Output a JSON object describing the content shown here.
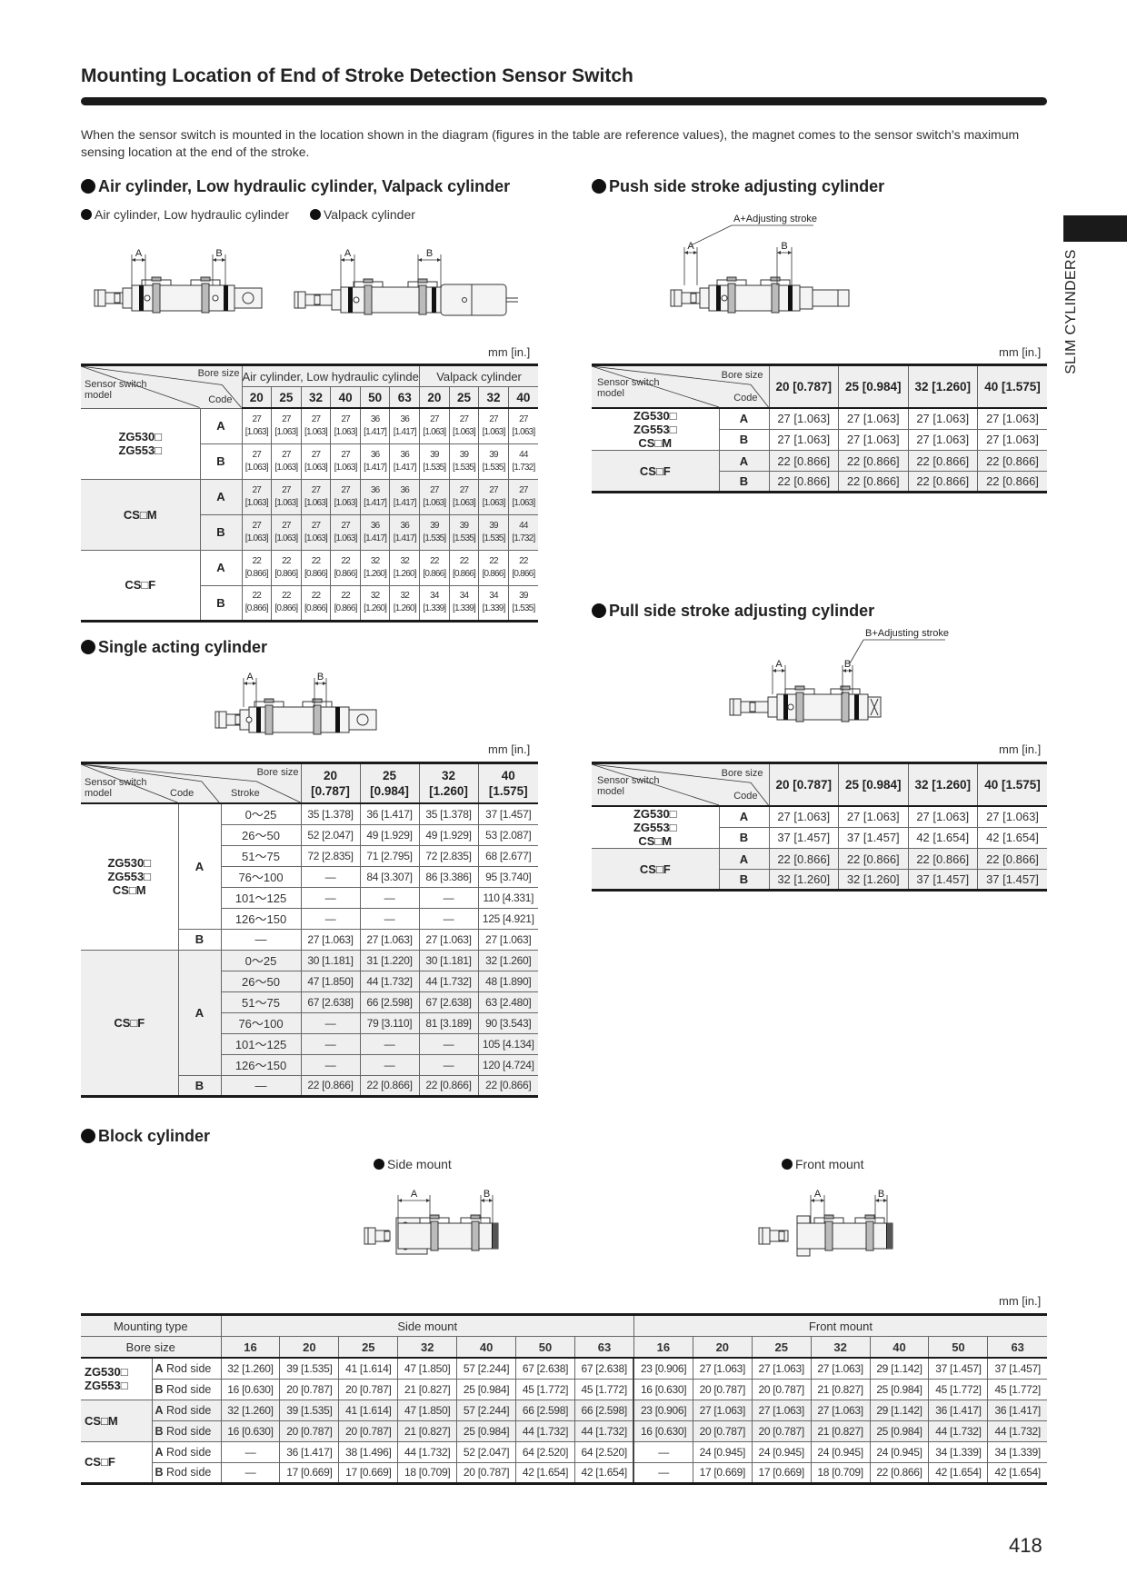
{
  "page": {
    "title": "Mounting Location of End of Stroke Detection Sensor Switch",
    "intro": "When the sensor switch is mounted in the location shown in the diagram (figures in the table are reference values), the magnet comes to the sensor switch's maximum sensing location at the end of the stroke.",
    "side_tab": "SLIM CYLINDERS",
    "page_number": "418",
    "unit_label": "mm [in.]"
  },
  "sections": {
    "air": {
      "heading": "Air cylinder, Low hydraulic cylinder, Valpack cylinder",
      "sub_air": "Air cylinder, Low hydraulic cylinder",
      "sub_valpack": "Valpack cylinder"
    },
    "push": {
      "heading": "Push side stroke adjusting cylinder",
      "note": "A+Adjusting stroke"
    },
    "single": {
      "heading": "Single acting cylinder"
    },
    "pull": {
      "heading": "Pull side stroke adjusting cylinder",
      "note": "B+Adjusting stroke"
    },
    "block": {
      "heading": "Block cylinder",
      "sub_side": "Side mount",
      "sub_front": "Front mount"
    }
  },
  "diagram_labels": {
    "a": "A",
    "b": "B"
  },
  "corner_labels": {
    "bore_size": "Bore size",
    "code": "Code",
    "sensor_switch_model": "Sensor switch model",
    "stroke": "Stroke"
  },
  "tables": {
    "air": {
      "groups": [
        {
          "label": "Air cylinder, Low hydraulic cylinder",
          "span": 6
        },
        {
          "label": "Valpack cylinder",
          "span": 4
        }
      ],
      "bores": [
        "20",
        "25",
        "32",
        "40",
        "50",
        "63",
        "20",
        "25",
        "32",
        "40"
      ],
      "models": [
        {
          "model": [
            "ZG530□",
            "ZG553□"
          ],
          "shaded": false,
          "rows": [
            {
              "code": "A",
              "values": [
                "27 [1.063]",
                "27 [1.063]",
                "27 [1.063]",
                "27 [1.063]",
                "36 [1.417]",
                "36 [1.417]",
                "27 [1.063]",
                "27 [1.063]",
                "27 [1.063]",
                "27 [1.063]"
              ]
            },
            {
              "code": "B",
              "values": [
                "27 [1.063]",
                "27 [1.063]",
                "27 [1.063]",
                "27 [1.063]",
                "36 [1.417]",
                "36 [1.417]",
                "39 [1.535]",
                "39 [1.535]",
                "39 [1.535]",
                "44 [1.732]"
              ]
            }
          ]
        },
        {
          "model": [
            "CS□M"
          ],
          "shaded": true,
          "rows": [
            {
              "code": "A",
              "values": [
                "27 [1.063]",
                "27 [1.063]",
                "27 [1.063]",
                "27 [1.063]",
                "36 [1.417]",
                "36 [1.417]",
                "27 [1.063]",
                "27 [1.063]",
                "27 [1.063]",
                "27 [1.063]"
              ]
            },
            {
              "code": "B",
              "values": [
                "27 [1.063]",
                "27 [1.063]",
                "27 [1.063]",
                "27 [1.063]",
                "36 [1.417]",
                "36 [1.417]",
                "39 [1.535]",
                "39 [1.535]",
                "39 [1.535]",
                "44 [1.732]"
              ]
            }
          ]
        },
        {
          "model": [
            "CS□F"
          ],
          "shaded": false,
          "rows": [
            {
              "code": "A",
              "values": [
                "22 [0.866]",
                "22 [0.866]",
                "22 [0.866]",
                "22 [0.866]",
                "32 [1.260]",
                "32 [1.260]",
                "22 [0.866]",
                "22 [0.866]",
                "22 [0.866]",
                "22 [0.866]"
              ]
            },
            {
              "code": "B",
              "values": [
                "22 [0.866]",
                "22 [0.866]",
                "22 [0.866]",
                "22 [0.866]",
                "32 [1.260]",
                "32 [1.260]",
                "34 [1.339]",
                "34 [1.339]",
                "34 [1.339]",
                "39 [1.535]"
              ]
            }
          ]
        }
      ]
    },
    "push": {
      "bores": [
        "20 [0.787]",
        "25 [0.984]",
        "32 [1.260]",
        "40 [1.575]"
      ],
      "models": [
        {
          "model": [
            "ZG530□",
            "ZG553□",
            "CS□M"
          ],
          "shaded": false,
          "rows": [
            {
              "code": "A",
              "values": [
                "27 [1.063]",
                "27 [1.063]",
                "27 [1.063]",
                "27 [1.063]"
              ]
            },
            {
              "code": "B",
              "values": [
                "27 [1.063]",
                "27 [1.063]",
                "27 [1.063]",
                "27 [1.063]"
              ]
            }
          ]
        },
        {
          "model": [
            "CS□F"
          ],
          "shaded": true,
          "rows": [
            {
              "code": "A",
              "values": [
                "22 [0.866]",
                "22 [0.866]",
                "22 [0.866]",
                "22 [0.866]"
              ]
            },
            {
              "code": "B",
              "values": [
                "22 [0.866]",
                "22 [0.866]",
                "22 [0.866]",
                "22 [0.866]"
              ]
            }
          ]
        }
      ]
    },
    "pull": {
      "bores": [
        "20 [0.787]",
        "25 [0.984]",
        "32 [1.260]",
        "40 [1.575]"
      ],
      "models": [
        {
          "model": [
            "ZG530□",
            "ZG553□",
            "CS□M"
          ],
          "shaded": false,
          "rows": [
            {
              "code": "A",
              "values": [
                "27 [1.063]",
                "27 [1.063]",
                "27 [1.063]",
                "27 [1.063]"
              ]
            },
            {
              "code": "B",
              "values": [
                "37 [1.457]",
                "37 [1.457]",
                "42 [1.654]",
                "42 [1.654]"
              ]
            }
          ]
        },
        {
          "model": [
            "CS□F"
          ],
          "shaded": true,
          "rows": [
            {
              "code": "A",
              "values": [
                "22 [0.866]",
                "22 [0.866]",
                "22 [0.866]",
                "22 [0.866]"
              ]
            },
            {
              "code": "B",
              "values": [
                "32 [1.260]",
                "32 [1.260]",
                "37 [1.457]",
                "37 [1.457]"
              ]
            }
          ]
        }
      ]
    },
    "single": {
      "bores": [
        "20 [0.787]",
        "25 [0.984]",
        "32 [1.260]",
        "40 [1.575]"
      ],
      "models": [
        {
          "model": [
            "ZG530□",
            "ZG553□",
            "CS□M"
          ],
          "shaded": false,
          "codes": [
            {
              "code": "A",
              "rows": [
                {
                  "stroke": "0～25",
                  "values": [
                    "35 [1.378]",
                    "36 [1.417]",
                    "35 [1.378]",
                    "37 [1.457]"
                  ]
                },
                {
                  "stroke": "26～50",
                  "values": [
                    "52 [2.047]",
                    "49 [1.929]",
                    "49 [1.929]",
                    "53 [2.087]"
                  ]
                },
                {
                  "stroke": "51～75",
                  "values": [
                    "72 [2.835]",
                    "71 [2.795]",
                    "72 [2.835]",
                    "68 [2.677]"
                  ]
                },
                {
                  "stroke": "76～100",
                  "values": [
                    "—",
                    "84 [3.307]",
                    "86 [3.386]",
                    "95 [3.740]"
                  ]
                },
                {
                  "stroke": "101～125",
                  "values": [
                    "—",
                    "—",
                    "—",
                    "110 [4.331]"
                  ]
                },
                {
                  "stroke": "126～150",
                  "values": [
                    "—",
                    "—",
                    "—",
                    "125 [4.921]"
                  ]
                }
              ]
            },
            {
              "code": "B",
              "rows": [
                {
                  "stroke": "—",
                  "values": [
                    "27 [1.063]",
                    "27 [1.063]",
                    "27 [1.063]",
                    "27 [1.063]"
                  ]
                }
              ]
            }
          ]
        },
        {
          "model": [
            "CS□F"
          ],
          "shaded": true,
          "codes": [
            {
              "code": "A",
              "rows": [
                {
                  "stroke": "0～25",
                  "values": [
                    "30 [1.181]",
                    "31 [1.220]",
                    "30 [1.181]",
                    "32 [1.260]"
                  ]
                },
                {
                  "stroke": "26～50",
                  "values": [
                    "47 [1.850]",
                    "44 [1.732]",
                    "44 [1.732]",
                    "48 [1.890]"
                  ]
                },
                {
                  "stroke": "51～75",
                  "values": [
                    "67 [2.638]",
                    "66 [2.598]",
                    "67 [2.638]",
                    "63 [2.480]"
                  ]
                },
                {
                  "stroke": "76～100",
                  "values": [
                    "—",
                    "79 [3.110]",
                    "81 [3.189]",
                    "90 [3.543]"
                  ]
                },
                {
                  "stroke": "101～125",
                  "values": [
                    "—",
                    "—",
                    "—",
                    "105 [4.134]"
                  ]
                },
                {
                  "stroke": "126～150",
                  "values": [
                    "—",
                    "—",
                    "—",
                    "120 [4.724]"
                  ]
                }
              ]
            },
            {
              "code": "B",
              "rows": [
                {
                  "stroke": "—",
                  "values": [
                    "22 [0.866]",
                    "22 [0.866]",
                    "22 [0.866]",
                    "22 [0.866]"
                  ]
                }
              ]
            }
          ]
        }
      ]
    },
    "block": {
      "mounting_type_label": "Mounting type",
      "bore_size_label": "Bore size",
      "groups": [
        "Side mount",
        "Front mount"
      ],
      "bores": [
        "16",
        "20",
        "25",
        "32",
        "40",
        "50",
        "63",
        "16",
        "20",
        "25",
        "32",
        "40",
        "50",
        "63"
      ],
      "side_label": "Rod side",
      "models": [
        {
          "model": [
            "ZG530□",
            "ZG553□"
          ],
          "shaded": false,
          "rows": [
            {
              "code": "A",
              "values": [
                "32 [1.260]",
                "39 [1.535]",
                "41 [1.614]",
                "47 [1.850]",
                "57 [2.244]",
                "67 [2.638]",
                "67 [2.638]",
                "23 [0.906]",
                "27 [1.063]",
                "27 [1.063]",
                "27 [1.063]",
                "29 [1.142]",
                "37 [1.457]",
                "37 [1.457]"
              ]
            },
            {
              "code": "B",
              "values": [
                "16 [0.630]",
                "20 [0.787]",
                "20 [0.787]",
                "21 [0.827]",
                "25 [0.984]",
                "45 [1.772]",
                "45 [1.772]",
                "16 [0.630]",
                "20 [0.787]",
                "20 [0.787]",
                "21 [0.827]",
                "25 [0.984]",
                "45 [1.772]",
                "45 [1.772]"
              ]
            }
          ]
        },
        {
          "model": [
            "CS□M"
          ],
          "shaded": true,
          "rows": [
            {
              "code": "A",
              "values": [
                "32 [1.260]",
                "39 [1.535]",
                "41 [1.614]",
                "47 [1.850]",
                "57 [2.244]",
                "66 [2.598]",
                "66 [2.598]",
                "23 [0.906]",
                "27 [1.063]",
                "27 [1.063]",
                "27 [1.063]",
                "29 [1.142]",
                "36 [1.417]",
                "36 [1.417]"
              ]
            },
            {
              "code": "B",
              "values": [
                "16 [0.630]",
                "20 [0.787]",
                "20 [0.787]",
                "21 [0.827]",
                "25 [0.984]",
                "44 [1.732]",
                "44 [1.732]",
                "16 [0.630]",
                "20 [0.787]",
                "20 [0.787]",
                "21 [0.827]",
                "25 [0.984]",
                "44 [1.732]",
                "44 [1.732]"
              ]
            }
          ]
        },
        {
          "model": [
            "CS□F"
          ],
          "shaded": false,
          "rows": [
            {
              "code": "A",
              "values": [
                "—",
                "36 [1.417]",
                "38 [1.496]",
                "44 [1.732]",
                "52 [2.047]",
                "64 [2.520]",
                "64 [2.520]",
                "—",
                "24 [0.945]",
                "24 [0.945]",
                "24 [0.945]",
                "24 [0.945]",
                "34 [1.339]",
                "34 [1.339]"
              ]
            },
            {
              "code": "B",
              "values": [
                "—",
                "17 [0.669]",
                "17 [0.669]",
                "18 [0.709]",
                "20 [0.787]",
                "42 [1.654]",
                "42 [1.654]",
                "—",
                "17 [0.669]",
                "17 [0.669]",
                "18 [0.709]",
                "22 [0.866]",
                "42 [1.654]",
                "42 [1.654]"
              ]
            }
          ]
        }
      ]
    }
  }
}
